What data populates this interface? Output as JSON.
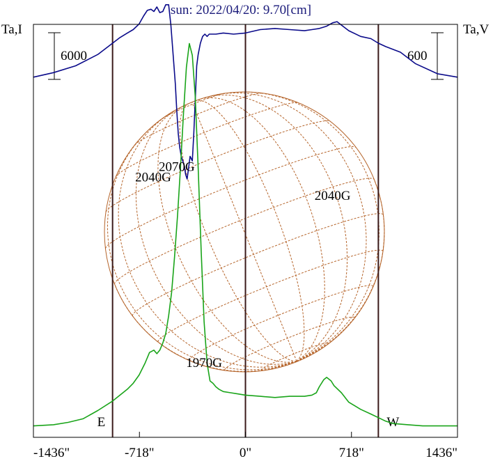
{
  "chart_data": {
    "type": "line",
    "title": "sun: 2022/04/20: 9.70[cm]",
    "left_axis_label": "Ta,I",
    "right_axis_label": "Ta,V",
    "left_scale_bar": "6000",
    "right_scale_bar": "600",
    "x_ticks": [
      {
        "value": -1436,
        "label": "-1436\""
      },
      {
        "value": -718,
        "label": "-718\""
      },
      {
        "value": 0,
        "label": "0\""
      },
      {
        "value": 718,
        "label": "718\""
      },
      {
        "value": 1436,
        "label": "1436\""
      }
    ],
    "xlim": [
      -1436,
      1436
    ],
    "limb_markers": [
      {
        "value": -900,
        "label": "E"
      },
      {
        "value": 900,
        "label": "W"
      }
    ],
    "annotations": [
      {
        "text": "2040G",
        "x": -625,
        "y_frac": 0.38
      },
      {
        "text": "2070G",
        "x": -465,
        "y_frac": 0.355
      },
      {
        "text": "2040G",
        "x": 590,
        "y_frac": 0.425
      },
      {
        "text": "1970G",
        "x": -280,
        "y_frac": 0.83
      }
    ],
    "colors": {
      "stokes_i": "#0a0a8a",
      "stokes_v": "#19a419",
      "grid": "#b5642a",
      "frame": "#000000",
      "markers": "#3a1a1a",
      "title": "#1a1a7a"
    },
    "series": [
      {
        "key": "stokes_i",
        "x": [
          -1436,
          -1300,
          -1150,
          -1000,
          -900,
          -850,
          -800,
          -760,
          -720,
          -690,
          -665,
          -640,
          -620,
          -600,
          -580,
          -560,
          -540,
          -520,
          -505,
          -490,
          -475,
          -465,
          -455,
          -445,
          -435,
          -425,
          -415,
          -405,
          -395,
          -385,
          -375,
          -360,
          -350,
          -340,
          -330,
          -320,
          -305,
          -290,
          -275,
          -260,
          -245,
          -230,
          -200,
          -150,
          -80,
          0,
          100,
          200,
          300,
          400,
          450,
          500,
          550,
          590,
          620,
          650,
          700,
          780,
          850,
          900,
          950,
          1050,
          1150,
          1300,
          1436
        ],
        "y": [
          0.45,
          0.47,
          0.5,
          0.55,
          0.6,
          0.625,
          0.645,
          0.66,
          0.685,
          0.72,
          0.745,
          0.75,
          0.74,
          0.76,
          0.735,
          0.74,
          0.77,
          0.77,
          0.68,
          0.55,
          0.42,
          0.3,
          0.2,
          0.14,
          0.1,
          0.08,
          0.06,
          0.02,
          0.0,
          0.05,
          0.1,
          0.08,
          0.2,
          0.35,
          0.5,
          0.55,
          0.6,
          0.63,
          0.64,
          0.63,
          0.64,
          0.64,
          0.64,
          0.645,
          0.64,
          0.645,
          0.66,
          0.665,
          0.66,
          0.655,
          0.66,
          0.665,
          0.675,
          0.69,
          0.695,
          0.68,
          0.655,
          0.63,
          0.62,
          0.6,
          0.585,
          0.56,
          0.51,
          0.465,
          0.45
        ]
      },
      {
        "key": "stokes_v",
        "x": [
          -1436,
          -1300,
          -1200,
          -1100,
          -1000,
          -900,
          -850,
          -800,
          -760,
          -720,
          -680,
          -650,
          -620,
          -600,
          -580,
          -560,
          -540,
          -520,
          -500,
          -480,
          -460,
          -440,
          -420,
          -400,
          -380,
          -360,
          -340,
          -320,
          -300,
          -280,
          -260,
          -240,
          -220,
          -200,
          -180,
          -150,
          -100,
          -50,
          0,
          100,
          200,
          300,
          400,
          450,
          480,
          500,
          530,
          550,
          580,
          600,
          650,
          700,
          780,
          850,
          900,
          950,
          1000,
          1100,
          1200,
          1300,
          1436
        ],
        "y": [
          0.02,
          0.03,
          0.05,
          0.08,
          0.15,
          0.23,
          0.28,
          0.33,
          0.38,
          0.45,
          0.55,
          0.64,
          0.66,
          0.63,
          0.66,
          0.72,
          0.8,
          0.95,
          1.15,
          1.45,
          1.8,
          2.2,
          2.65,
          3.05,
          3.25,
          3.15,
          2.8,
          2.2,
          1.5,
          0.9,
          0.55,
          0.4,
          0.38,
          0.35,
          0.33,
          0.31,
          0.3,
          0.29,
          0.28,
          0.27,
          0.26,
          0.27,
          0.27,
          0.28,
          0.3,
          0.35,
          0.41,
          0.43,
          0.4,
          0.36,
          0.3,
          0.22,
          0.16,
          0.12,
          0.09,
          0.06,
          0.04,
          0.03,
          0.02,
          0.02,
          0.02
        ]
      }
    ]
  }
}
